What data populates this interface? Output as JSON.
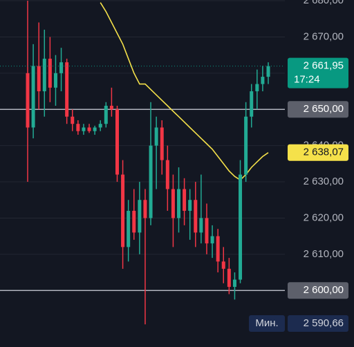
{
  "chart_data": {
    "type": "candlestick",
    "open": [
      2660,
      2645,
      2662,
      2655,
      2664,
      2656,
      2660,
      2663,
      2648,
      2646,
      2644,
      2645,
      2644,
      2645,
      2646,
      2651,
      2650,
      2632,
      2612,
      2622,
      2616,
      2625,
      2620,
      2640,
      2645,
      2636,
      2628,
      2620,
      2628,
      2622,
      2625,
      2616,
      2620,
      2613,
      2615,
      2608,
      2606,
      2601,
      2603,
      2632,
      2648,
      2655,
      2657,
      2659
    ],
    "high": [
      2680,
      2668,
      2674,
      2672,
      2670,
      2665,
      2667,
      2664,
      2650,
      2647,
      2646,
      2646,
      2645.5,
      2647,
      2652,
      2656,
      2651,
      2636,
      2625,
      2628,
      2630,
      2628,
      2652,
      2648,
      2647,
      2640,
      2632,
      2634,
      2631,
      2628,
      2630,
      2632,
      2624,
      2618,
      2617,
      2612,
      2609,
      2605,
      2636,
      2652,
      2657,
      2661,
      2662,
      2663
    ],
    "low": [
      2630,
      2642,
      2650,
      2648,
      2652,
      2651,
      2655,
      2646,
      2644,
      2643,
      2643,
      2643.5,
      2643,
      2644,
      2645,
      2648,
      2630,
      2606,
      2608,
      2614,
      2610,
      2590.66,
      2618,
      2628,
      2632,
      2622,
      2612,
      2616,
      2618,
      2614,
      2612,
      2613,
      2610,
      2609,
      2605,
      2602,
      2599,
      2597.5,
      2602,
      2630,
      2645,
      2650,
      2655,
      2657
    ],
    "close": [
      2645,
      2662,
      2655,
      2664,
      2656,
      2660,
      2663,
      2648,
      2646,
      2644,
      2645,
      2644,
      2645,
      2646,
      2651,
      2650,
      2632,
      2612,
      2622,
      2616,
      2625,
      2620,
      2640,
      2645,
      2636,
      2628,
      2620,
      2628,
      2622,
      2625,
      2616,
      2620,
      2613,
      2615,
      2608,
      2606,
      2601,
      2603,
      2632,
      2648,
      2655,
      2657,
      2659,
      2661.95
    ],
    "up_color": "#22ab94",
    "down_color": "#f23645",
    "ma": {
      "color": "#f5e14a",
      "values": [
        null,
        null,
        null,
        null,
        null,
        null,
        null,
        null,
        null,
        null,
        null,
        null,
        null,
        2679.5,
        2677,
        2674,
        2671,
        2668,
        2664,
        2660,
        2657,
        2657,
        2655.5,
        2654,
        2652.5,
        2651,
        2649.5,
        2648,
        2646.5,
        2645,
        2643.5,
        2642,
        2640.5,
        2639,
        2637,
        2635,
        2633,
        2631.5,
        2630.5,
        2632,
        2634,
        2635.5,
        2637,
        2638.07
      ]
    },
    "ylim": [
      2584.4,
      2680.2
    ],
    "yticks": [
      {
        "value": 2600,
        "label": "2 600,00"
      },
      {
        "value": 2610,
        "label": "2 610,00"
      },
      {
        "value": 2620,
        "label": "2 620,00"
      },
      {
        "value": 2630,
        "label": "2 630,00"
      },
      {
        "value": 2640,
        "label": "2 640,00"
      },
      {
        "value": 2650,
        "label": "2 650,00"
      },
      {
        "value": 2660,
        "label": "2 660,00"
      },
      {
        "value": 2670,
        "label": "2 670,00"
      },
      {
        "value": 2680,
        "label": "2 680,00"
      }
    ],
    "grid": true,
    "hlines": [
      2650,
      2600
    ],
    "last": {
      "value": 2661.95,
      "label": "2 661,95",
      "time": "17:24",
      "color": "#089981"
    },
    "ma_label": {
      "value": 2638.07,
      "label": "2 638,07"
    },
    "min_label": {
      "title": "Мин.",
      "value": 2590.66,
      "label": "2 590,66"
    }
  }
}
